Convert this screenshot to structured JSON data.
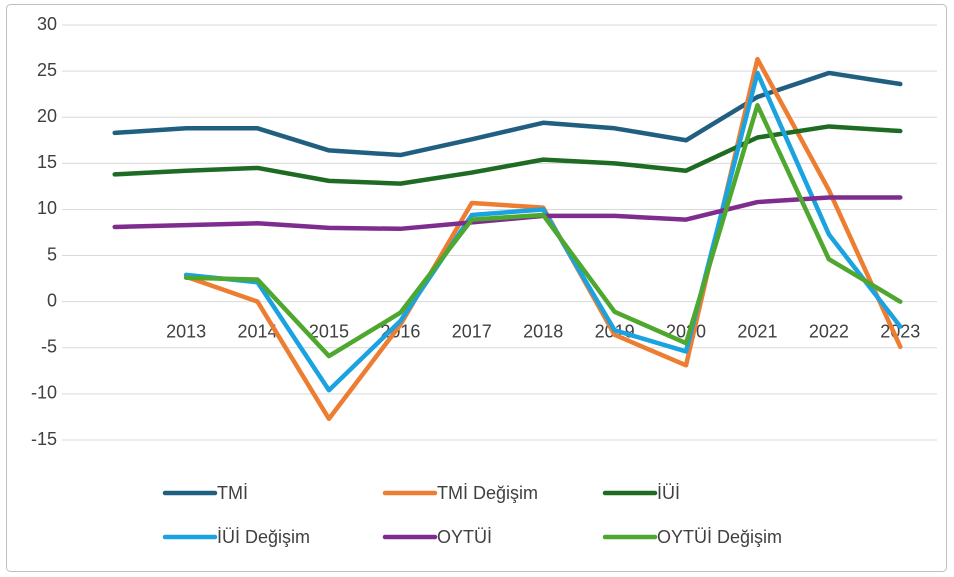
{
  "chart_data": {
    "type": "line",
    "categories": [
      null,
      "2013",
      "2014",
      "2015",
      "2016",
      "2017",
      "2018",
      "2019",
      "2020",
      "2021",
      "2022",
      "2023"
    ],
    "series": [
      {
        "name": "TMİ",
        "color": "#215f80",
        "values": [
          18.3,
          18.8,
          18.8,
          16.4,
          15.9,
          17.6,
          19.4,
          18.8,
          17.5,
          22.2,
          24.8,
          23.6
        ]
      },
      {
        "name": "TMİ Değişim",
        "color": "#ed7d31",
        "values": [
          null,
          2.7,
          0,
          -12.7,
          -2.5,
          10.7,
          10.2,
          -3.6,
          -6.9,
          26.3,
          12.1,
          -4.9
        ]
      },
      {
        "name": "İÜİ",
        "color": "#1e6b24",
        "values": [
          13.8,
          14.2,
          14.5,
          13.1,
          12.8,
          14.0,
          15.4,
          15.0,
          14.2,
          17.8,
          19.0,
          18.5
        ]
      },
      {
        "name": "İÜİ Değişim",
        "color": "#1aa3e0",
        "values": [
          null,
          2.9,
          2.1,
          -9.6,
          -2.1,
          9.4,
          10.0,
          -3.1,
          -5.4,
          24.8,
          7.3,
          -2.7
        ]
      },
      {
        "name": "OYTÜİ",
        "color": "#7e2d8e",
        "values": [
          8.1,
          8.3,
          8.5,
          8.0,
          7.9,
          8.6,
          9.3,
          9.3,
          8.9,
          10.8,
          11.3,
          11.3
        ]
      },
      {
        "name": "OYTÜİ Değişim",
        "color": "#4ea72e",
        "values": [
          null,
          2.6,
          2.4,
          -5.9,
          -1.2,
          8.9,
          9.4,
          -1.1,
          -4.5,
          21.3,
          4.6,
          0.0
        ]
      }
    ],
    "ylim": [
      -15,
      30
    ],
    "yticks": [
      -15,
      -10,
      -5,
      0,
      5,
      10,
      15,
      20,
      25,
      30
    ],
    "grid": true,
    "legend": "bottom"
  }
}
